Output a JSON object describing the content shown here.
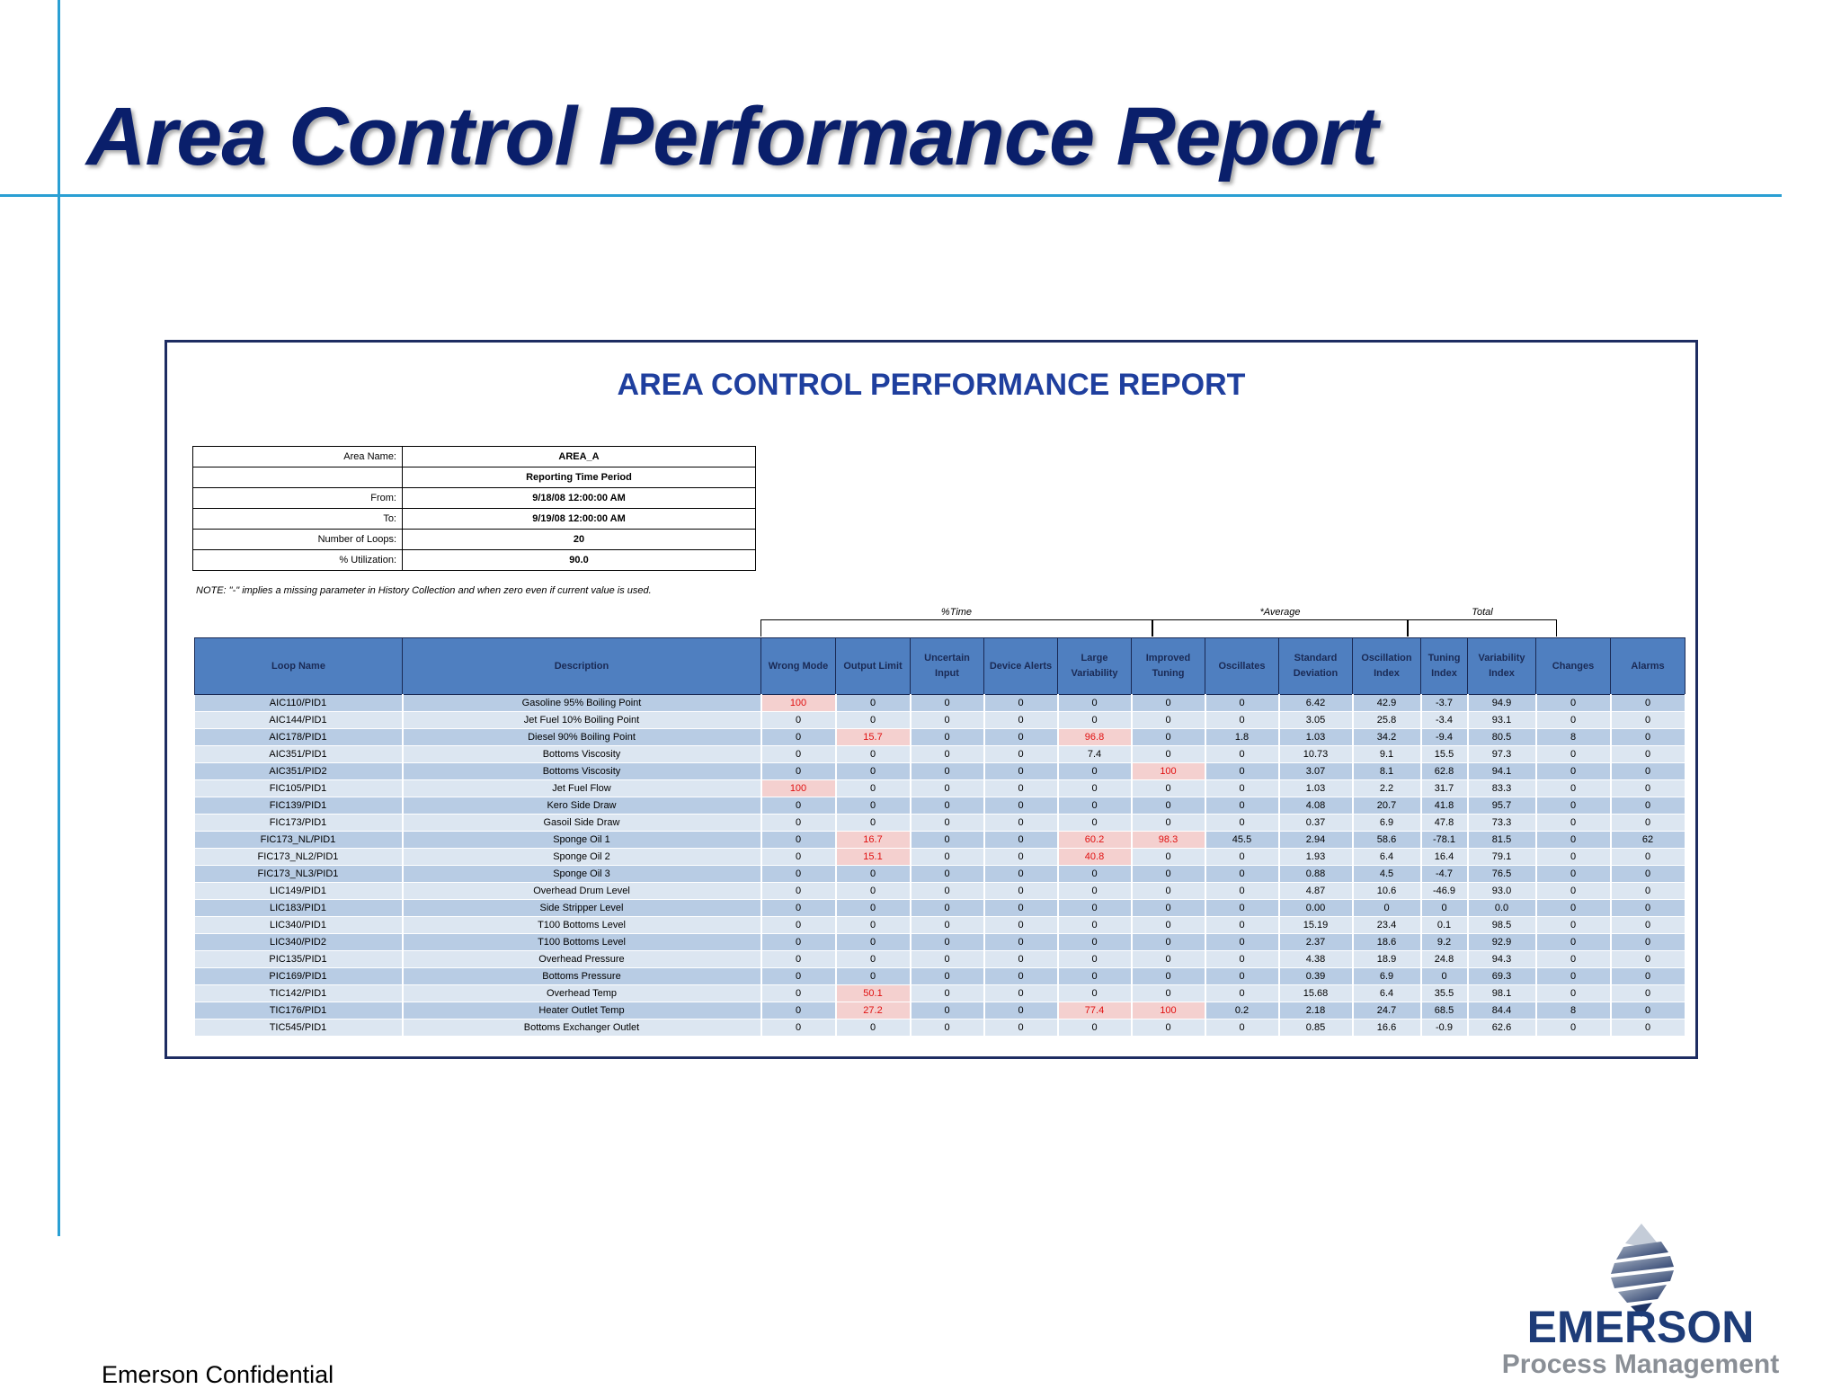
{
  "slide": {
    "title": "Area Control Performance Report",
    "footer": "Emerson Confidential",
    "logo_name": "EMERSON",
    "logo_tagline": "Process Management"
  },
  "report": {
    "title": "AREA CONTROL PERFORMANCE REPORT",
    "info": [
      {
        "label": "Area Name:",
        "value": "AREA_A"
      },
      {
        "label": "",
        "value": "Reporting Time Period"
      },
      {
        "label": "From:",
        "value": "9/18/08 12:00:00 AM"
      },
      {
        "label": "To:",
        "value": "9/19/08 12:00:00 AM"
      },
      {
        "label": "Number of Loops:",
        "value": "20"
      },
      {
        "label": "% Utilization:",
        "value": "90.0"
      }
    ],
    "note": "NOTE: \"-\" implies a missing parameter in History Collection and when zero even if current value is used.",
    "groups": {
      "time": "%Time",
      "average": "*Average",
      "total": "Total"
    },
    "columns": [
      "Loop Name",
      "Description",
      "Wrong Mode",
      "Output Limit",
      "Uncertain Input",
      "Device Alerts",
      "Large Variability",
      "Improved Tuning",
      "Oscillates",
      "Standard Deviation",
      "Oscillation Index",
      "Tuning Index",
      "Variability Index",
      "Changes",
      "Alarms"
    ],
    "highlight_color": "#e01010",
    "rows": [
      {
        "cells": [
          "AIC110/PID1",
          "Gasoline 95% Boiling Point",
          "100",
          "0",
          "0",
          "0",
          "0",
          "0",
          "0",
          "6.42",
          "42.9",
          "-3.7",
          "94.9",
          "0",
          "0"
        ],
        "flagged": [
          2
        ]
      },
      {
        "cells": [
          "AIC144/PID1",
          "Jet Fuel 10% Boiling Point",
          "0",
          "0",
          "0",
          "0",
          "0",
          "0",
          "0",
          "3.05",
          "25.8",
          "-3.4",
          "93.1",
          "0",
          "0"
        ],
        "flagged": []
      },
      {
        "cells": [
          "AIC178/PID1",
          "Diesel 90% Boiling Point",
          "0",
          "15.7",
          "0",
          "0",
          "96.8",
          "0",
          "1.8",
          "1.03",
          "34.2",
          "-9.4",
          "80.5",
          "8",
          "0"
        ],
        "flagged": [
          3,
          6
        ]
      },
      {
        "cells": [
          "AIC351/PID1",
          "Bottoms Viscosity",
          "0",
          "0",
          "0",
          "0",
          "7.4",
          "0",
          "0",
          "10.73",
          "9.1",
          "15.5",
          "97.3",
          "0",
          "0"
        ],
        "flagged": []
      },
      {
        "cells": [
          "AIC351/PID2",
          "Bottoms Viscosity",
          "0",
          "0",
          "0",
          "0",
          "0",
          "100",
          "0",
          "3.07",
          "8.1",
          "62.8",
          "94.1",
          "0",
          "0"
        ],
        "flagged": [
          7
        ]
      },
      {
        "cells": [
          "FIC105/PID1",
          "Jet Fuel Flow",
          "100",
          "0",
          "0",
          "0",
          "0",
          "0",
          "0",
          "1.03",
          "2.2",
          "31.7",
          "83.3",
          "0",
          "0"
        ],
        "flagged": [
          2
        ]
      },
      {
        "cells": [
          "FIC139/PID1",
          "Kero Side Draw",
          "0",
          "0",
          "0",
          "0",
          "0",
          "0",
          "0",
          "4.08",
          "20.7",
          "41.8",
          "95.7",
          "0",
          "0"
        ],
        "flagged": []
      },
      {
        "cells": [
          "FIC173/PID1",
          "Gasoil Side Draw",
          "0",
          "0",
          "0",
          "0",
          "0",
          "0",
          "0",
          "0.37",
          "6.9",
          "47.8",
          "73.3",
          "0",
          "0"
        ],
        "flagged": []
      },
      {
        "cells": [
          "FIC173_NL/PID1",
          "Sponge Oil 1",
          "0",
          "16.7",
          "0",
          "0",
          "60.2",
          "98.3",
          "45.5",
          "2.94",
          "58.6",
          "-78.1",
          "81.5",
          "0",
          "62"
        ],
        "flagged": [
          3,
          6,
          7
        ]
      },
      {
        "cells": [
          "FIC173_NL2/PID1",
          "Sponge Oil 2",
          "0",
          "15.1",
          "0",
          "0",
          "40.8",
          "0",
          "0",
          "1.93",
          "6.4",
          "16.4",
          "79.1",
          "0",
          "0"
        ],
        "flagged": [
          3,
          6
        ]
      },
      {
        "cells": [
          "FIC173_NL3/PID1",
          "Sponge Oil 3",
          "0",
          "0",
          "0",
          "0",
          "0",
          "0",
          "0",
          "0.88",
          "4.5",
          "-4.7",
          "76.5",
          "0",
          "0"
        ],
        "flagged": []
      },
      {
        "cells": [
          "LIC149/PID1",
          "Overhead Drum Level",
          "0",
          "0",
          "0",
          "0",
          "0",
          "0",
          "0",
          "4.87",
          "10.6",
          "-46.9",
          "93.0",
          "0",
          "0"
        ],
        "flagged": []
      },
      {
        "cells": [
          "LIC183/PID1",
          "Side Stripper Level",
          "0",
          "0",
          "0",
          "0",
          "0",
          "0",
          "0",
          "0.00",
          "0",
          "0",
          "0.0",
          "0",
          "0"
        ],
        "flagged": []
      },
      {
        "cells": [
          "LIC340/PID1",
          "T100 Bottoms Level",
          "0",
          "0",
          "0",
          "0",
          "0",
          "0",
          "0",
          "15.19",
          "23.4",
          "0.1",
          "98.5",
          "0",
          "0"
        ],
        "flagged": []
      },
      {
        "cells": [
          "LIC340/PID2",
          "T100 Bottoms Level",
          "0",
          "0",
          "0",
          "0",
          "0",
          "0",
          "0",
          "2.37",
          "18.6",
          "9.2",
          "92.9",
          "0",
          "0"
        ],
        "flagged": []
      },
      {
        "cells": [
          "PIC135/PID1",
          "Overhead Pressure",
          "0",
          "0",
          "0",
          "0",
          "0",
          "0",
          "0",
          "4.38",
          "18.9",
          "24.8",
          "94.3",
          "0",
          "0"
        ],
        "flagged": []
      },
      {
        "cells": [
          "PIC169/PID1",
          "Bottoms Pressure",
          "0",
          "0",
          "0",
          "0",
          "0",
          "0",
          "0",
          "0.39",
          "6.9",
          "0",
          "69.3",
          "0",
          "0"
        ],
        "flagged": []
      },
      {
        "cells": [
          "TIC142/PID1",
          "Overhead Temp",
          "0",
          "50.1",
          "0",
          "0",
          "0",
          "0",
          "0",
          "15.68",
          "6.4",
          "35.5",
          "98.1",
          "0",
          "0"
        ],
        "flagged": [
          3
        ]
      },
      {
        "cells": [
          "TIC176/PID1",
          "Heater Outlet Temp",
          "0",
          "27.2",
          "0",
          "0",
          "77.4",
          "100",
          "0.2",
          "2.18",
          "24.7",
          "68.5",
          "84.4",
          "8",
          "0"
        ],
        "flagged": [
          3,
          6,
          7
        ]
      },
      {
        "cells": [
          "TIC545/PID1",
          "Bottoms Exchanger Outlet",
          "0",
          "0",
          "0",
          "0",
          "0",
          "0",
          "0",
          "0.85",
          "16.6",
          "-0.9",
          "62.6",
          "0",
          "0"
        ],
        "flagged": []
      }
    ]
  }
}
